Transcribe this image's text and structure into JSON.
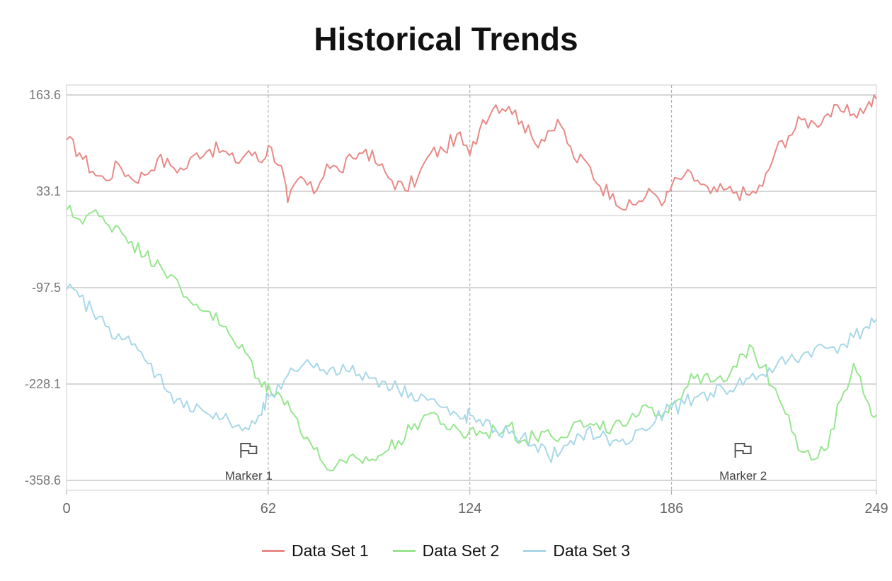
{
  "chart_data": {
    "type": "line",
    "title": "Historical Trends",
    "xlim": [
      0,
      249
    ],
    "ylim": [
      -358.6,
      163.6
    ],
    "x_ticks": [
      0,
      62,
      124,
      186,
      249
    ],
    "y_ticks": [
      163.6,
      33.1,
      -97.5,
      -228.1,
      -358.6
    ],
    "y_tick_labels": [
      "163.6",
      "33.1",
      "-97.5",
      "-228.1",
      "-358.6"
    ],
    "x_tick_labels": [
      "0",
      "62",
      "124",
      "186",
      "249"
    ],
    "grid": true,
    "legend_position": "bottom",
    "series": [
      {
        "name": "Data Set 1",
        "color": "#e88a87",
        "x": [
          0,
          4,
          8,
          12,
          16,
          20,
          24,
          28,
          32,
          36,
          40,
          44,
          48,
          52,
          56,
          60,
          62,
          66,
          68,
          72,
          76,
          80,
          84,
          88,
          92,
          96,
          100,
          104,
          108,
          112,
          116,
          120,
          124,
          128,
          132,
          136,
          140,
          144,
          148,
          152,
          156,
          160,
          164,
          168,
          172,
          176,
          180,
          184,
          186,
          190,
          194,
          198,
          202,
          206,
          210,
          214,
          218,
          222,
          226,
          230,
          234,
          238,
          242,
          246,
          249
        ],
        "values": [
          103,
          85,
          60,
          48,
          70,
          50,
          55,
          77,
          68,
          62,
          85,
          90,
          88,
          72,
          88,
          72,
          95,
          68,
          18,
          53,
          30,
          70,
          60,
          78,
          90,
          68,
          48,
          35,
          52,
          85,
          88,
          110,
          82,
          130,
          150,
          148,
          128,
          98,
          115,
          122,
          78,
          72,
          40,
          30,
          8,
          20,
          32,
          20,
          40,
          55,
          48,
          30,
          35,
          32,
          28,
          40,
          88,
          108,
          130,
          125,
          138,
          142,
          138,
          148,
          158
        ]
      },
      {
        "name": "Data Set 2",
        "color": "#97e68f",
        "x": [
          0,
          4,
          8,
          12,
          16,
          20,
          24,
          28,
          32,
          36,
          40,
          44,
          48,
          52,
          56,
          60,
          62,
          66,
          70,
          74,
          78,
          82,
          86,
          90,
          94,
          98,
          102,
          106,
          110,
          114,
          118,
          122,
          124,
          128,
          132,
          136,
          140,
          144,
          148,
          152,
          156,
          160,
          164,
          168,
          172,
          176,
          180,
          184,
          186,
          190,
          194,
          198,
          202,
          206,
          210,
          214,
          218,
          222,
          226,
          230,
          234,
          238,
          242,
          246,
          249
        ],
        "values": [
          8,
          -5,
          5,
          -10,
          -15,
          -35,
          -55,
          -60,
          -80,
          -110,
          -120,
          -130,
          -150,
          -175,
          -190,
          -232,
          -228,
          -245,
          -270,
          -300,
          -330,
          -345,
          -335,
          -330,
          -330,
          -320,
          -305,
          -290,
          -270,
          -270,
          -290,
          -300,
          -290,
          -295,
          -290,
          -285,
          -305,
          -300,
          -290,
          -300,
          -280,
          -285,
          -290,
          -285,
          -285,
          -270,
          -260,
          -265,
          -255,
          -235,
          -215,
          -225,
          -225,
          -205,
          -175,
          -205,
          -235,
          -270,
          -320,
          -330,
          -315,
          -250,
          -200,
          -250,
          -270
        ]
      },
      {
        "name": "Data Set 3",
        "color": "#a8d8e8",
        "x": [
          0,
          4,
          8,
          12,
          16,
          20,
          24,
          28,
          32,
          36,
          40,
          44,
          48,
          52,
          56,
          60,
          62,
          66,
          70,
          74,
          78,
          82,
          86,
          90,
          94,
          98,
          102,
          106,
          110,
          114,
          118,
          122,
          124,
          128,
          132,
          136,
          140,
          144,
          148,
          152,
          156,
          160,
          164,
          168,
          172,
          176,
          180,
          184,
          186,
          190,
          194,
          198,
          202,
          206,
          210,
          214,
          218,
          222,
          226,
          230,
          234,
          238,
          242,
          246,
          249
        ],
        "values": [
          -100,
          -110,
          -130,
          -150,
          -160,
          -175,
          -195,
          -215,
          -240,
          -260,
          -255,
          -270,
          -275,
          -285,
          -290,
          -270,
          -245,
          -235,
          -210,
          -195,
          -210,
          -205,
          -210,
          -215,
          -220,
          -225,
          -235,
          -240,
          -245,
          -255,
          -270,
          -275,
          -270,
          -285,
          -290,
          -295,
          -300,
          -310,
          -325,
          -320,
          -310,
          -290,
          -300,
          -305,
          -310,
          -290,
          -285,
          -265,
          -260,
          -255,
          -245,
          -240,
          -235,
          -230,
          -220,
          -215,
          -205,
          -195,
          -190,
          -180,
          -180,
          -175,
          -165,
          -150,
          -140
        ]
      }
    ],
    "annotations": [
      {
        "label": "Marker 1",
        "x": 56,
        "icon": "flag-icon"
      },
      {
        "label": "Marker 2",
        "x": 208,
        "icon": "flag-icon"
      }
    ],
    "reference_line_y": 0
  }
}
